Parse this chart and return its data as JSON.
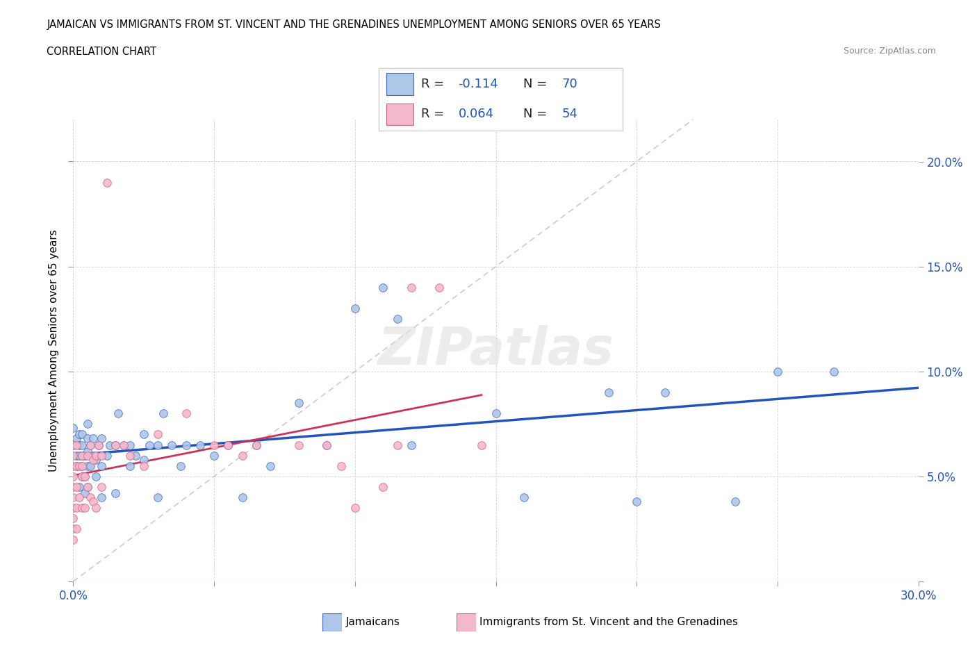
{
  "title_line1": "JAMAICAN VS IMMIGRANTS FROM ST. VINCENT AND THE GRENADINES UNEMPLOYMENT AMONG SENIORS OVER 65 YEARS",
  "title_line2": "CORRELATION CHART",
  "source": "Source: ZipAtlas.com",
  "ylabel": "Unemployment Among Seniors over 65 years",
  "xlim": [
    0.0,
    0.3
  ],
  "ylim": [
    0.0,
    0.22
  ],
  "x_ticks": [
    0.0,
    0.05,
    0.1,
    0.15,
    0.2,
    0.25,
    0.3
  ],
  "x_tick_labels": [
    "0.0%",
    "",
    "",
    "",
    "",
    "",
    "30.0%"
  ],
  "y_ticks": [
    0.0,
    0.05,
    0.1,
    0.15,
    0.2
  ],
  "y_tick_labels_right": [
    "",
    "5.0%",
    "10.0%",
    "15.0%",
    "20.0%"
  ],
  "blue_color": "#aec6e8",
  "pink_color": "#f4b8cc",
  "blue_edge": "#3a6bc4",
  "pink_edge": "#d46080",
  "trendline_blue": "#2255bb",
  "trendline_pink": "#cc3355",
  "diag_color": "#ccaaaa",
  "watermark": "ZIPatlas",
  "blue_R": -0.114,
  "blue_N": 70,
  "pink_R": 0.064,
  "pink_N": 54,
  "jamaicans_x": [
    0.0,
    0.0,
    0.001,
    0.001,
    0.001,
    0.002,
    0.002,
    0.002,
    0.002,
    0.003,
    0.003,
    0.003,
    0.003,
    0.003,
    0.004,
    0.004,
    0.004,
    0.005,
    0.005,
    0.005,
    0.005,
    0.005,
    0.006,
    0.006,
    0.007,
    0.007,
    0.008,
    0.008,
    0.009,
    0.01,
    0.01,
    0.01,
    0.012,
    0.013,
    0.015,
    0.015,
    0.016,
    0.018,
    0.02,
    0.02,
    0.022,
    0.025,
    0.025,
    0.027,
    0.03,
    0.03,
    0.032,
    0.035,
    0.038,
    0.04,
    0.045,
    0.05,
    0.055,
    0.06,
    0.065,
    0.07,
    0.08,
    0.09,
    0.1,
    0.11,
    0.115,
    0.12,
    0.15,
    0.16,
    0.19,
    0.2,
    0.21,
    0.235,
    0.25,
    0.27
  ],
  "jamaicans_y": [
    0.065,
    0.073,
    0.06,
    0.068,
    0.055,
    0.06,
    0.065,
    0.07,
    0.045,
    0.05,
    0.055,
    0.06,
    0.065,
    0.07,
    0.042,
    0.05,
    0.06,
    0.045,
    0.055,
    0.062,
    0.068,
    0.075,
    0.055,
    0.065,
    0.06,
    0.068,
    0.05,
    0.058,
    0.065,
    0.04,
    0.055,
    0.068,
    0.06,
    0.065,
    0.042,
    0.065,
    0.08,
    0.065,
    0.055,
    0.065,
    0.06,
    0.058,
    0.07,
    0.065,
    0.04,
    0.065,
    0.08,
    0.065,
    0.055,
    0.065,
    0.065,
    0.06,
    0.065,
    0.04,
    0.065,
    0.055,
    0.085,
    0.065,
    0.13,
    0.14,
    0.125,
    0.065,
    0.08,
    0.04,
    0.09,
    0.038,
    0.09,
    0.038,
    0.1,
    0.1
  ],
  "svg_x": [
    0.0,
    0.0,
    0.0,
    0.0,
    0.0,
    0.0,
    0.0,
    0.0,
    0.0,
    0.0,
    0.001,
    0.001,
    0.001,
    0.001,
    0.001,
    0.002,
    0.002,
    0.003,
    0.003,
    0.003,
    0.003,
    0.004,
    0.004,
    0.005,
    0.005,
    0.006,
    0.006,
    0.007,
    0.007,
    0.008,
    0.008,
    0.009,
    0.01,
    0.01,
    0.012,
    0.015,
    0.018,
    0.02,
    0.025,
    0.03,
    0.04,
    0.05,
    0.055,
    0.06,
    0.065,
    0.08,
    0.09,
    0.095,
    0.1,
    0.11,
    0.115,
    0.12,
    0.13,
    0.145
  ],
  "svg_y": [
    0.02,
    0.025,
    0.03,
    0.035,
    0.04,
    0.045,
    0.05,
    0.055,
    0.06,
    0.065,
    0.025,
    0.035,
    0.045,
    0.055,
    0.065,
    0.04,
    0.055,
    0.035,
    0.05,
    0.055,
    0.06,
    0.035,
    0.05,
    0.045,
    0.06,
    0.04,
    0.065,
    0.038,
    0.058,
    0.035,
    0.06,
    0.065,
    0.045,
    0.06,
    0.19,
    0.065,
    0.065,
    0.06,
    0.055,
    0.07,
    0.08,
    0.065,
    0.065,
    0.06,
    0.065,
    0.065,
    0.065,
    0.055,
    0.035,
    0.045,
    0.065,
    0.14,
    0.14,
    0.065
  ],
  "legend_R_color": "#2255bb",
  "legend_N_color": "#2255bb",
  "legend_text_color": "#222222"
}
